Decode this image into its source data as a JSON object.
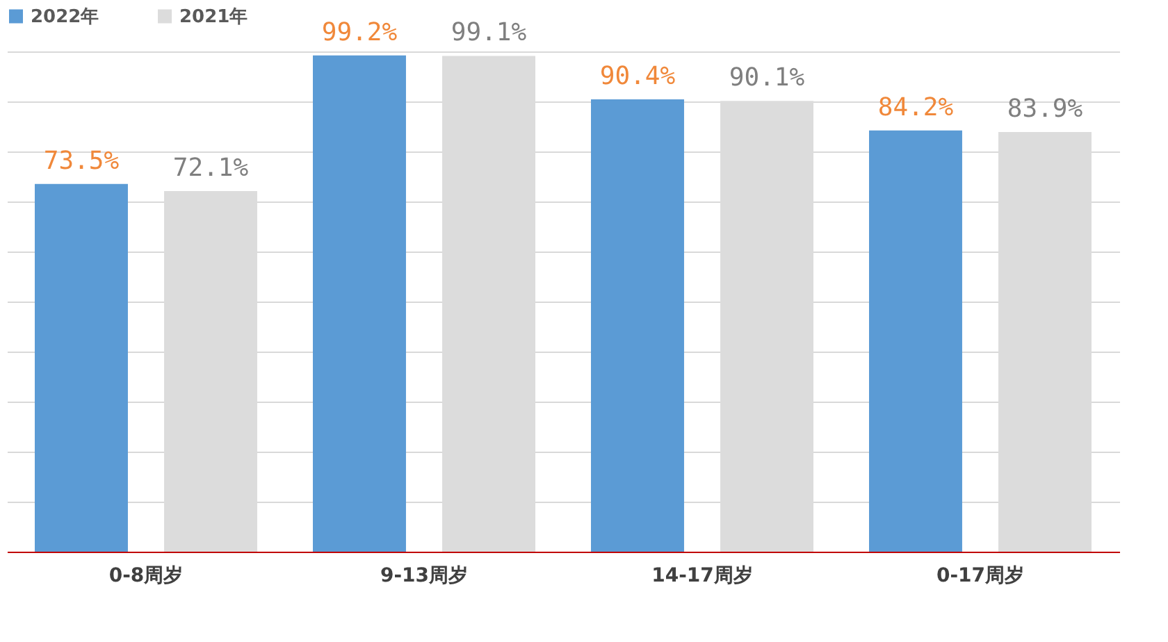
{
  "chart_data": {
    "type": "bar",
    "categories": [
      "0-8周岁",
      "9-13周岁",
      "14-17周岁",
      "0-17周岁"
    ],
    "series": [
      {
        "name": "2022年",
        "color": "#5b9bd5",
        "values": [
          73.5,
          99.2,
          90.4,
          84.2
        ],
        "value_labels": [
          "73.5%",
          "99.2%",
          "90.4%",
          "84.2%"
        ]
      },
      {
        "name": "2021年",
        "color": "#dcdcdc",
        "values": [
          72.1,
          99.1,
          90.1,
          83.9
        ],
        "value_labels": [
          "72.1%",
          "99.1%",
          "90.1%",
          "83.9%"
        ]
      }
    ],
    "grid": "y",
    "legend": "top",
    "tick_labels": "x"
  }
}
